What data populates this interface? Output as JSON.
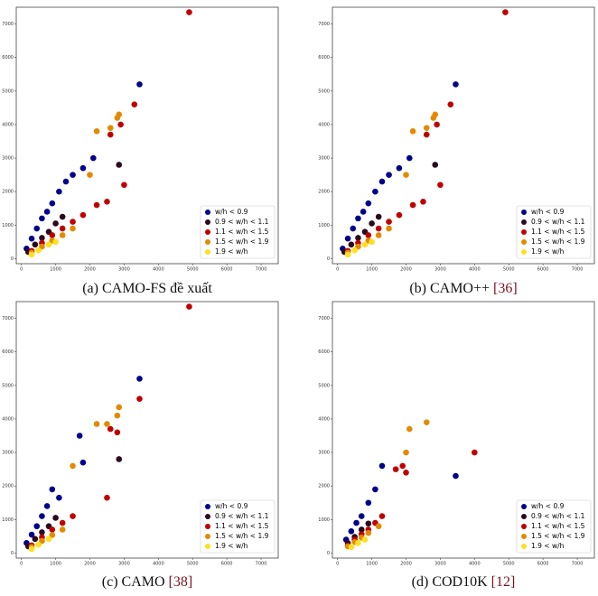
{
  "chart_data": [
    {
      "type": "scatter",
      "caption": "(a) CAMO-FS đề xuất",
      "xlim": [
        -150,
        7500
      ],
      "ylim": [
        -150,
        7500
      ],
      "xticks": [
        0,
        1000,
        2000,
        3000,
        4000,
        5000,
        6000,
        7000
      ],
      "yticks": [
        0,
        1000,
        2000,
        3000,
        4000,
        5000,
        6000,
        7000
      ],
      "legend": "lower right",
      "series": [
        {
          "name": "w/h < 0.9",
          "color": "#00008b",
          "x": [
            150,
            300,
            450,
            600,
            750,
            900,
            1100,
            1300,
            1500,
            1800,
            2100,
            3450
          ],
          "y": [
            300,
            600,
            900,
            1200,
            1400,
            1650,
            2000,
            2300,
            2500,
            2700,
            3000,
            5200
          ]
        },
        {
          "name": "0.9 < w/h < 1.1",
          "color": "#2a0a1e",
          "x": [
            200,
            400,
            600,
            800,
            1000,
            1200,
            2850
          ],
          "y": [
            200,
            420,
            620,
            800,
            1050,
            1250,
            2800
          ]
        },
        {
          "name": "1.1 < w/h < 1.5",
          "color": "#c00000",
          "x": [
            300,
            600,
            900,
            1200,
            1500,
            1800,
            2200,
            2500,
            3000,
            3300,
            4900,
            2600,
            2900
          ],
          "y": [
            230,
            470,
            700,
            900,
            1100,
            1300,
            1600,
            1700,
            2200,
            4600,
            7350,
            3700,
            4000
          ]
        },
        {
          "name": "1.5 < w/h < 1.9",
          "color": "#e38a00",
          "x": [
            300,
            600,
            900,
            1200,
            1500,
            2000,
            2200,
            2600,
            2800,
            2850
          ],
          "y": [
            180,
            360,
            540,
            700,
            900,
            2500,
            3800,
            3900,
            4200,
            4300
          ]
        },
        {
          "name": "1.9 < w/h",
          "color": "#ffe020",
          "x": [
            300,
            500,
            800,
            1000
          ],
          "y": [
            120,
            250,
            420,
            500
          ]
        }
      ]
    },
    {
      "type": "scatter",
      "caption": "(b) CAMO++",
      "ref": "[36]",
      "xlim": [
        -150,
        7500
      ],
      "ylim": [
        -150,
        7500
      ],
      "xticks": [
        0,
        1000,
        2000,
        3000,
        4000,
        5000,
        6000,
        7000
      ],
      "yticks": [
        0,
        1000,
        2000,
        3000,
        4000,
        5000,
        6000,
        7000
      ],
      "legend": "lower right",
      "series": [
        {
          "name": "w/h < 0.9",
          "color": "#00008b",
          "x": [
            150,
            300,
            450,
            600,
            750,
            900,
            1100,
            1300,
            1500,
            1800,
            2100,
            3450
          ],
          "y": [
            300,
            600,
            900,
            1200,
            1400,
            1650,
            2000,
            2300,
            2500,
            2700,
            3000,
            5200
          ]
        },
        {
          "name": "0.9 < w/h < 1.1",
          "color": "#2a0a1e",
          "x": [
            200,
            400,
            600,
            800,
            1000,
            1200,
            2850
          ],
          "y": [
            200,
            420,
            620,
            800,
            1050,
            1250,
            2800
          ]
        },
        {
          "name": "1.1 < w/h < 1.5",
          "color": "#c00000",
          "x": [
            300,
            600,
            900,
            1200,
            1500,
            1800,
            2200,
            2500,
            3000,
            3300,
            4900,
            2600,
            2900
          ],
          "y": [
            230,
            470,
            700,
            900,
            1100,
            1300,
            1600,
            1700,
            2200,
            4600,
            7350,
            3700,
            4000
          ]
        },
        {
          "name": "1.5 < w/h < 1.9",
          "color": "#e38a00",
          "x": [
            300,
            600,
            900,
            1200,
            1500,
            2000,
            2200,
            2600,
            2800,
            2850
          ],
          "y": [
            180,
            360,
            540,
            700,
            900,
            2500,
            3800,
            3900,
            4200,
            4300
          ]
        },
        {
          "name": "1.9 < w/h",
          "color": "#ffe020",
          "x": [
            300,
            500,
            800,
            1000
          ],
          "y": [
            120,
            250,
            420,
            500
          ]
        }
      ]
    },
    {
      "type": "scatter",
      "caption": "(c) CAMO",
      "ref": "[38]",
      "xlim": [
        -150,
        7500
      ],
      "ylim": [
        -150,
        7500
      ],
      "xticks": [
        0,
        1000,
        2000,
        3000,
        4000,
        5000,
        6000,
        7000
      ],
      "yticks": [
        0,
        1000,
        2000,
        3000,
        4000,
        5000,
        6000,
        7000
      ],
      "legend": "lower right",
      "series": [
        {
          "name": "w/h < 0.9",
          "color": "#00008b",
          "x": [
            150,
            300,
            450,
            600,
            750,
            900,
            1100,
            1700,
            1800,
            3450
          ],
          "y": [
            300,
            550,
            800,
            1100,
            1400,
            1900,
            1650,
            3500,
            2700,
            5200
          ]
        },
        {
          "name": "0.9 < w/h < 1.1",
          "color": "#2a0a1e",
          "x": [
            200,
            400,
            600,
            800,
            1000,
            2850
          ],
          "y": [
            200,
            420,
            620,
            800,
            1050,
            2800
          ]
        },
        {
          "name": "1.1 < w/h < 1.5",
          "color": "#c00000",
          "x": [
            300,
            600,
            900,
            1200,
            1500,
            2500,
            2600,
            2800,
            3450,
            4900
          ],
          "y": [
            230,
            470,
            700,
            900,
            1100,
            1650,
            3700,
            3600,
            4600,
            7350
          ]
        },
        {
          "name": "1.5 < w/h < 1.9",
          "color": "#e38a00",
          "x": [
            300,
            600,
            900,
            1200,
            1500,
            2200,
            2500,
            2800,
            2850
          ],
          "y": [
            180,
            360,
            540,
            700,
            2600,
            3850,
            3850,
            4100,
            4350
          ]
        },
        {
          "name": "1.9 < w/h",
          "color": "#ffe020",
          "x": [
            300,
            500,
            800
          ],
          "y": [
            120,
            250,
            420
          ]
        }
      ]
    },
    {
      "type": "scatter",
      "caption": "(d) COD10K",
      "ref": "[12]",
      "xlim": [
        -150,
        7500
      ],
      "ylim": [
        -150,
        7500
      ],
      "xticks": [
        0,
        1000,
        2000,
        3000,
        4000,
        5000,
        6000,
        7000
      ],
      "yticks": [
        0,
        1000,
        2000,
        3000,
        4000,
        5000,
        6000,
        7000
      ],
      "legend": "lower right",
      "series": [
        {
          "name": "w/h < 0.9",
          "color": "#00008b",
          "x": [
            250,
            400,
            550,
            700,
            900,
            1100,
            1300,
            3450
          ],
          "y": [
            400,
            650,
            900,
            1100,
            1500,
            1900,
            2600,
            2300
          ]
        },
        {
          "name": "0.9 < w/h < 1.1",
          "color": "#2a0a1e",
          "x": [
            300,
            500,
            700,
            900
          ],
          "y": [
            300,
            480,
            700,
            880
          ]
        },
        {
          "name": "1.1 < w/h < 1.5",
          "color": "#c00000",
          "x": [
            300,
            500,
            700,
            900,
            1100,
            1300,
            1700,
            1900,
            2000,
            4000
          ],
          "y": [
            220,
            400,
            560,
            700,
            900,
            1100,
            2500,
            2600,
            2400,
            3000
          ]
        },
        {
          "name": "1.5 < w/h < 1.9",
          "color": "#e38a00",
          "x": [
            300,
            500,
            700,
            900,
            1200,
            2000,
            2100,
            2600
          ],
          "y": [
            200,
            330,
            460,
            600,
            800,
            3000,
            3700,
            3900
          ]
        },
        {
          "name": "1.9 < w/h",
          "color": "#ffe020",
          "x": [
            400,
            600,
            800
          ],
          "y": [
            180,
            300,
            400
          ]
        }
      ]
    }
  ]
}
